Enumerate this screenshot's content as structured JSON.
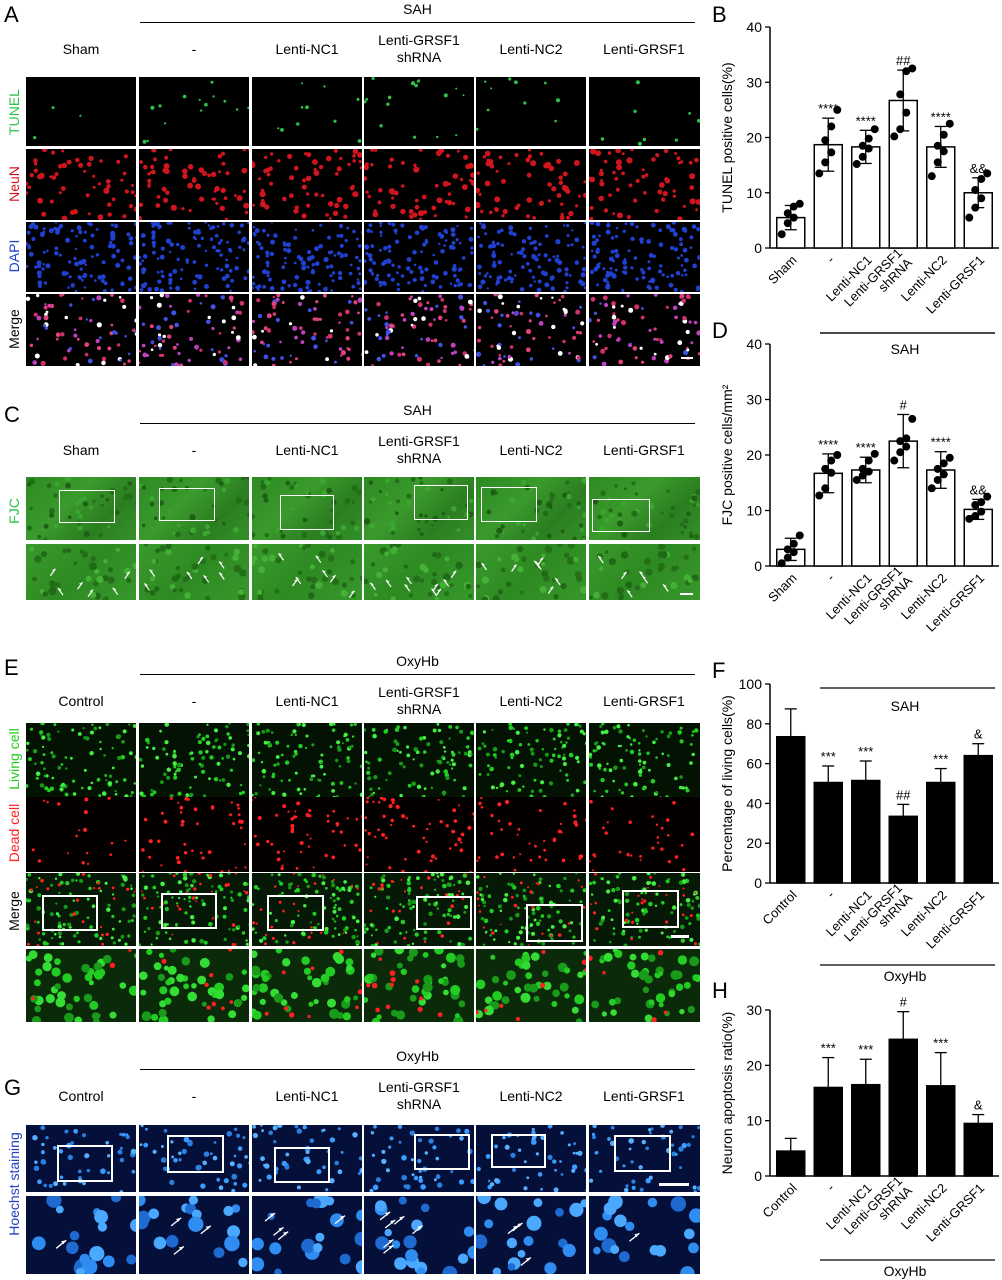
{
  "panels": {
    "A": {
      "label": "A",
      "group": "SAH",
      "columns": [
        "Sham",
        "-",
        "Lenti-NC1",
        "Lenti-GRSF1\nshRNA",
        "Lenti-NC2",
        "Lenti-GRSF1"
      ],
      "rows": [
        "TUNEL",
        "NeuN",
        "DAPI",
        "Merge"
      ]
    },
    "C": {
      "label": "C",
      "group": "SAH",
      "columns": [
        "Sham",
        "-",
        "Lenti-NC1",
        "Lenti-GRSF1\nshRNA",
        "Lenti-NC2",
        "Lenti-GRSF1"
      ],
      "rows": [
        "FJC"
      ]
    },
    "E": {
      "label": "E",
      "group": "OxyHb",
      "columns": [
        "Control",
        "-",
        "Lenti-NC1",
        "Lenti-GRSF1\nshRNA",
        "Lenti-NC2",
        "Lenti-GRSF1"
      ],
      "rows": [
        "Living cell",
        "Dead cell",
        "Merge"
      ]
    },
    "G": {
      "label": "G",
      "group": "OxyHb",
      "columns": [
        "Control",
        "-",
        "Lenti-NC1",
        "Lenti-GRSF1\nshRNA",
        "Lenti-NC2",
        "Lenti-GRSF1"
      ],
      "rows": [
        "Hoechst  staining"
      ]
    }
  },
  "colors": {
    "tunel": "#2ec24a",
    "neun": "#d0151e",
    "dapi": "#2040d0",
    "fjc_bg": "#2f8a24",
    "living": "#22cc22",
    "dead": "#ff2020",
    "hoechst_bg": "#04103a",
    "hoechst_cell": "#3a9cff"
  },
  "chart_data": [
    {
      "panel": "B",
      "type": "bar",
      "categories": [
        "Sham",
        "-",
        "Lenti-NC1",
        "Lenti-GRSF1\nshRNA",
        "Lenti-NC2",
        "Lenti-GRSF1"
      ],
      "values": [
        5.5,
        18.7,
        18.3,
        26.7,
        18.3,
        10.0
      ],
      "errors": [
        2.2,
        4.8,
        3.0,
        5.5,
        3.7,
        2.7
      ],
      "points": [
        [
          2.5,
          4.5,
          5.5,
          6.3,
          7.5,
          8.0
        ],
        [
          13.5,
          15.5,
          17.3,
          19.5,
          22.0,
          25.0
        ],
        [
          15.2,
          16.5,
          18.0,
          18.5,
          19.8,
          21.5
        ],
        [
          20.2,
          21.5,
          24.5,
          27.8,
          32.0,
          32.5
        ],
        [
          13.0,
          15.5,
          17.5,
          18.5,
          20.5,
          22.5
        ],
        [
          5.5,
          7.3,
          9.0,
          10.5,
          12.5,
          13.5
        ]
      ],
      "annotations": [
        "",
        "****",
        "****",
        "##",
        "****",
        "&&"
      ],
      "ylabel": "TUNEL positive cells(%)",
      "ylim": [
        0,
        40
      ],
      "yticks": [
        0,
        10,
        20,
        30,
        40
      ],
      "group_label": "SAH",
      "fill": "#ffffff"
    },
    {
      "panel": "D",
      "type": "bar",
      "categories": [
        "Sham",
        "-",
        "Lenti-NC1",
        "Lenti-GRSF1\nshRNA",
        "Lenti-NC2",
        "Lenti-GRSF1"
      ],
      "values": [
        3.0,
        16.7,
        17.3,
        22.5,
        17.3,
        10.2
      ],
      "errors": [
        2.0,
        3.5,
        2.3,
        4.8,
        3.3,
        1.8
      ],
      "points": [
        [
          0.5,
          1.5,
          2.5,
          3.0,
          4.0,
          5.5
        ],
        [
          12.7,
          14.0,
          16.8,
          17.5,
          19.0,
          20.0
        ],
        [
          15.5,
          16.3,
          17.0,
          17.5,
          19.0,
          20.2
        ],
        [
          19.0,
          20.5,
          21.5,
          22.5,
          23.0,
          26.5
        ],
        [
          14.0,
          15.5,
          16.5,
          17.5,
          18.5,
          19.5
        ],
        [
          8.5,
          9.0,
          9.8,
          11.0,
          11.5,
          12.5
        ]
      ],
      "annotations": [
        "",
        "****",
        "****",
        "#",
        "****",
        "&&"
      ],
      "ylabel": "FJC positive cells/mm²",
      "ylim": [
        0,
        40
      ],
      "yticks": [
        0,
        10,
        20,
        30,
        40
      ],
      "group_label": "SAH",
      "fill": "#ffffff"
    },
    {
      "panel": "F",
      "type": "bar",
      "categories": [
        "Control",
        "-",
        "Lenti-NC1",
        "Lenti-GRSF1\nshRNA",
        "Lenti-NC2",
        "Lenti-GRSF1"
      ],
      "values": [
        73.5,
        50.5,
        51.5,
        33.5,
        50.5,
        64.0
      ],
      "errors": [
        14.0,
        8.3,
        9.8,
        6.0,
        7.0,
        6.0
      ],
      "points": [],
      "annotations": [
        "",
        "***",
        "***",
        "##",
        "***",
        "&"
      ],
      "ylabel": "Percentage of living cells(%)",
      "ylim": [
        0,
        100
      ],
      "yticks": [
        0,
        20,
        40,
        60,
        80,
        100
      ],
      "group_label": "OxyHb",
      "top_group_label": "SAH",
      "fill": "#000000"
    },
    {
      "panel": "H",
      "type": "bar",
      "categories": [
        "Control",
        "-",
        "Lenti-NC1",
        "Lenti-GRSF1\nshRNA",
        "Lenti-NC2",
        "Lenti-GRSF1"
      ],
      "values": [
        4.5,
        16.0,
        16.5,
        24.7,
        16.3,
        9.5
      ],
      "errors": [
        2.3,
        5.4,
        4.6,
        5.0,
        6.0,
        1.6
      ],
      "points": [],
      "annotations": [
        "",
        "***",
        "***",
        "#",
        "***",
        "&"
      ],
      "ylabel": "Neuron apoptosis ratio(%)",
      "ylim": [
        0,
        30
      ],
      "yticks": [
        0,
        10,
        20,
        30
      ],
      "group_label": "OxyHb",
      "fill": "#000000"
    }
  ]
}
